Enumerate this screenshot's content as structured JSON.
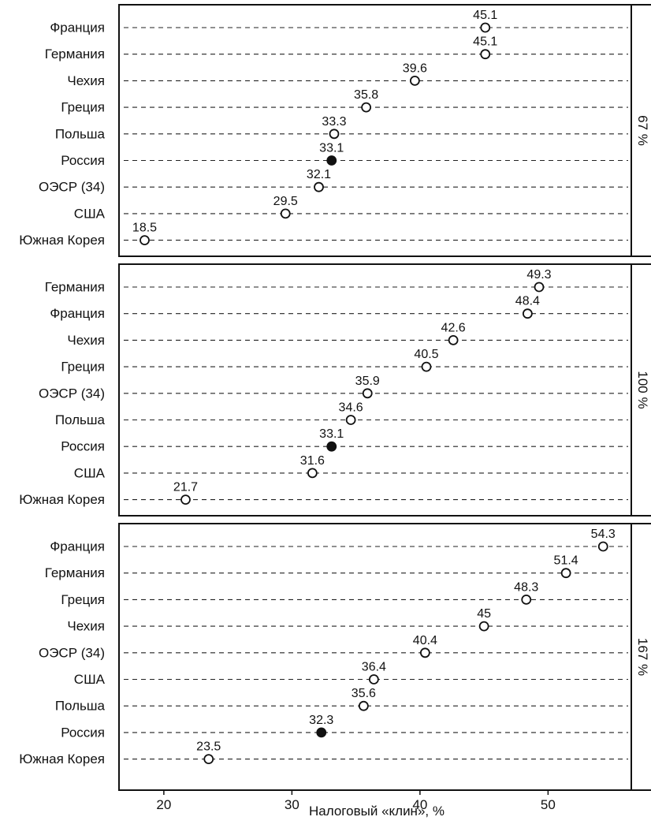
{
  "chart_data": {
    "type": "scatter",
    "xlabel": "Налоговый «клин», %",
    "xticks": [
      20,
      30,
      40,
      50
    ],
    "xlim": [
      16.5,
      56.5
    ],
    "grid": "horizontal dashed lines per category",
    "marker_colors": {
      "hollow": "#ffffff",
      "filled": "#111111"
    },
    "panels": [
      {
        "label": "67 %",
        "rows": [
          {
            "category": "Франция",
            "value": 45.1,
            "label": "45.1",
            "highlight": false
          },
          {
            "category": "Германия",
            "value": 45.1,
            "label": "45.1",
            "highlight": false
          },
          {
            "category": "Чехия",
            "value": 39.6,
            "label": "39.6",
            "highlight": false
          },
          {
            "category": "Греция",
            "value": 35.8,
            "label": "35.8",
            "highlight": false
          },
          {
            "category": "Польша",
            "value": 33.3,
            "label": "33.3",
            "highlight": false
          },
          {
            "category": "Россия",
            "value": 33.1,
            "label": "33.1",
            "highlight": true
          },
          {
            "category": "ОЭСР (34)",
            "value": 32.1,
            "label": "32.1",
            "highlight": false
          },
          {
            "category": "США",
            "value": 29.5,
            "label": "29.5",
            "highlight": false
          },
          {
            "category": "Южная Корея",
            "value": 18.5,
            "label": "18.5",
            "highlight": false
          }
        ]
      },
      {
        "label": "100 %",
        "rows": [
          {
            "category": "Германия",
            "value": 49.3,
            "label": "49.3",
            "highlight": false
          },
          {
            "category": "Франция",
            "value": 48.4,
            "label": "48.4",
            "highlight": false
          },
          {
            "category": "Чехия",
            "value": 42.6,
            "label": "42.6",
            "highlight": false
          },
          {
            "category": "Греция",
            "value": 40.5,
            "label": "40.5",
            "highlight": false
          },
          {
            "category": "ОЭСР (34)",
            "value": 35.9,
            "label": "35.9",
            "highlight": false
          },
          {
            "category": "Польша",
            "value": 34.6,
            "label": "34.6",
            "highlight": false
          },
          {
            "category": "Россия",
            "value": 33.1,
            "label": "33.1",
            "highlight": true
          },
          {
            "category": "США",
            "value": 31.6,
            "label": "31.6",
            "highlight": false
          },
          {
            "category": "Южная Корея",
            "value": 21.7,
            "label": "21.7",
            "highlight": false
          }
        ]
      },
      {
        "label": "167 %",
        "rows": [
          {
            "category": "Франция",
            "value": 54.3,
            "label": "54.3",
            "highlight": false
          },
          {
            "category": "Германия",
            "value": 51.4,
            "label": "51.4",
            "highlight": false
          },
          {
            "category": "Греция",
            "value": 48.3,
            "label": "48.3",
            "highlight": false
          },
          {
            "category": "Чехия",
            "value": 45.0,
            "label": "45",
            "highlight": false
          },
          {
            "category": "ОЭСР (34)",
            "value": 40.4,
            "label": "40.4",
            "highlight": false
          },
          {
            "category": "США",
            "value": 36.4,
            "label": "36.4",
            "highlight": false
          },
          {
            "category": "Польша",
            "value": 35.6,
            "label": "35.6",
            "highlight": false
          },
          {
            "category": "Россия",
            "value": 32.3,
            "label": "32.3",
            "highlight": true
          },
          {
            "category": "Южная Корея",
            "value": 23.5,
            "label": "23.5",
            "highlight": false
          }
        ]
      }
    ]
  }
}
